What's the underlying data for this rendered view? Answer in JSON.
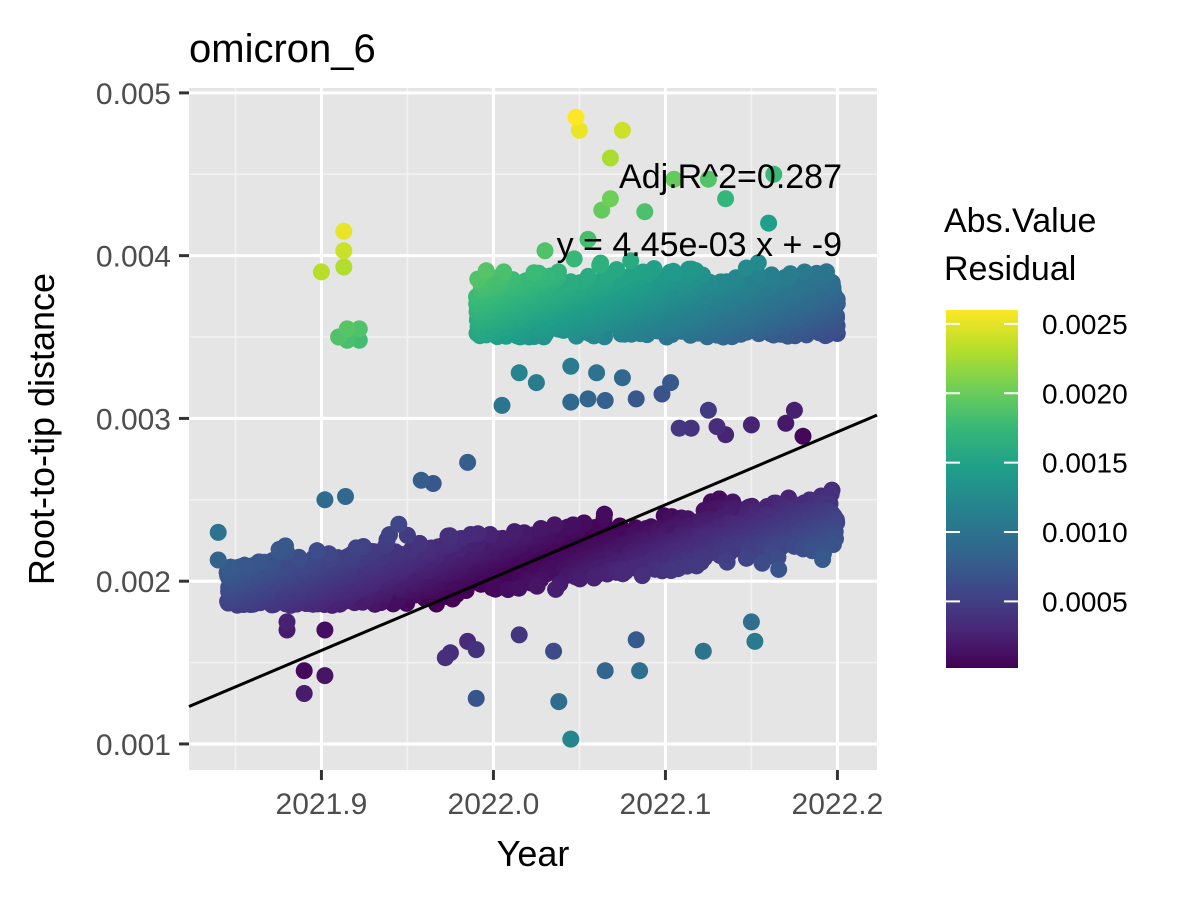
{
  "chart_data": {
    "type": "scatter",
    "title": "omicron_6",
    "xlabel": "Year",
    "ylabel": "Root-to-tip distance",
    "xlim": [
      2021.823,
      2022.223
    ],
    "ylim": [
      0.00084,
      0.00503
    ],
    "x_ticks": [
      2021.9,
      2022.0,
      2022.1,
      2022.2
    ],
    "x_tick_labels": [
      "2021.9",
      "2022.0",
      "2022.1",
      "2022.2"
    ],
    "y_ticks": [
      0.001,
      0.002,
      0.003,
      0.004,
      0.005
    ],
    "y_tick_labels": [
      "0.001",
      "0.002",
      "0.003",
      "0.004",
      "0.005"
    ],
    "grid": true,
    "panel_background": "#e5e5e5",
    "annotations": [
      "Adj.R^2=0.287",
      "y = 4.45e-03 x + -9"
    ],
    "regression_line": {
      "x": [
        2021.823,
        2022.223
      ],
      "y": [
        0.00123,
        0.00302
      ]
    },
    "color_scale": {
      "title_lines": [
        "Abs.Value",
        "Residual"
      ],
      "palette": "viridis",
      "range": [
        2e-05,
        0.0026
      ],
      "ticks": [
        0.0005,
        0.001,
        0.0015,
        0.002,
        0.0025
      ],
      "tick_labels": [
        "0.0005",
        "0.0010",
        "0.0015",
        "0.0020",
        "0.0025"
      ],
      "colors": [
        "#440154",
        "#482878",
        "#3e4989",
        "#31688e",
        "#26828e",
        "#1f9e89",
        "#35b779",
        "#6ece58",
        "#b5de2b",
        "#fde725"
      ]
    },
    "outlier_points": [
      [
        2021.84,
        0.0023
      ],
      [
        2021.84,
        0.00213
      ],
      [
        2021.9,
        0.0039
      ],
      [
        2021.913,
        0.00415
      ],
      [
        2021.913,
        0.00403
      ],
      [
        2021.913,
        0.00393
      ],
      [
        2021.91,
        0.0035
      ],
      [
        2021.915,
        0.00355
      ],
      [
        2021.915,
        0.00348
      ],
      [
        2021.922,
        0.00355
      ],
      [
        2021.922,
        0.00348
      ],
      [
        2021.902,
        0.0025
      ],
      [
        2021.914,
        0.00252
      ],
      [
        2021.89,
        0.00145
      ],
      [
        2021.89,
        0.00131
      ],
      [
        2021.902,
        0.00142
      ],
      [
        2021.902,
        0.0017
      ],
      [
        2021.88,
        0.00175
      ],
      [
        2021.88,
        0.0017
      ],
      [
        2021.972,
        0.00153
      ],
      [
        2021.975,
        0.00156
      ],
      [
        2021.99,
        0.00128
      ],
      [
        2021.985,
        0.00163
      ],
      [
        2021.99,
        0.00158
      ],
      [
        2022.015,
        0.00167
      ],
      [
        2022.035,
        0.00157
      ],
      [
        2022.038,
        0.00126
      ],
      [
        2022.045,
        0.00103
      ],
      [
        2022.065,
        0.00145
      ],
      [
        2022.085,
        0.00145
      ],
      [
        2022.083,
        0.00164
      ],
      [
        2022.122,
        0.00157
      ],
      [
        2022.15,
        0.00175
      ],
      [
        2022.152,
        0.00163
      ],
      [
        2022.048,
        0.00485
      ],
      [
        2022.05,
        0.00477
      ],
      [
        2022.075,
        0.00477
      ],
      [
        2022.068,
        0.0046
      ],
      [
        2022.068,
        0.00435
      ],
      [
        2022.063,
        0.00428
      ],
      [
        2022.088,
        0.00427
      ],
      [
        2022.105,
        0.00447
      ],
      [
        2022.125,
        0.00447
      ],
      [
        2022.135,
        0.00435
      ],
      [
        2022.163,
        0.0045
      ],
      [
        2022.16,
        0.0042
      ],
      [
        2022.03,
        0.00403
      ],
      [
        2022.055,
        0.0041
      ],
      [
        2022.006,
        0.0039
      ],
      [
        2022.0,
        0.00382
      ],
      [
        2022.015,
        0.00328
      ],
      [
        2022.025,
        0.00322
      ],
      [
        2022.045,
        0.00332
      ],
      [
        2022.06,
        0.00328
      ],
      [
        2022.075,
        0.00325
      ],
      [
        2022.103,
        0.00322
      ],
      [
        2022.098,
        0.00315
      ],
      [
        2022.083,
        0.00312
      ],
      [
        2022.055,
        0.00312
      ],
      [
        2022.045,
        0.0031
      ],
      [
        2022.065,
        0.00311
      ],
      [
        2022.125,
        0.00305
      ],
      [
        2022.005,
        0.00308
      ],
      [
        2022.13,
        0.00295
      ],
      [
        2022.175,
        0.00305
      ],
      [
        2022.15,
        0.00296
      ],
      [
        2022.17,
        0.00297
      ],
      [
        2022.108,
        0.00294
      ],
      [
        2022.115,
        0.00294
      ],
      [
        2022.18,
        0.00289
      ],
      [
        2022.135,
        0.0029
      ],
      [
        2021.958,
        0.00262
      ],
      [
        2021.945,
        0.00235
      ],
      [
        2021.985,
        0.00273
      ],
      [
        2021.965,
        0.0026
      ]
    ],
    "clusters": [
      {
        "name": "upper",
        "x_range": [
          2021.99,
          2022.2
        ],
        "y_center": 0.00368,
        "y_spread": 0.00017,
        "y_min": 0.0035,
        "n": 1400
      },
      {
        "name": "lower",
        "x_range": [
          2021.845,
          2022.2
        ],
        "y_center": 0.00215,
        "y_spread": 0.00014,
        "y_min": 0.00185,
        "n": 2600,
        "y_trend_per_year": 0.0012
      }
    ]
  }
}
